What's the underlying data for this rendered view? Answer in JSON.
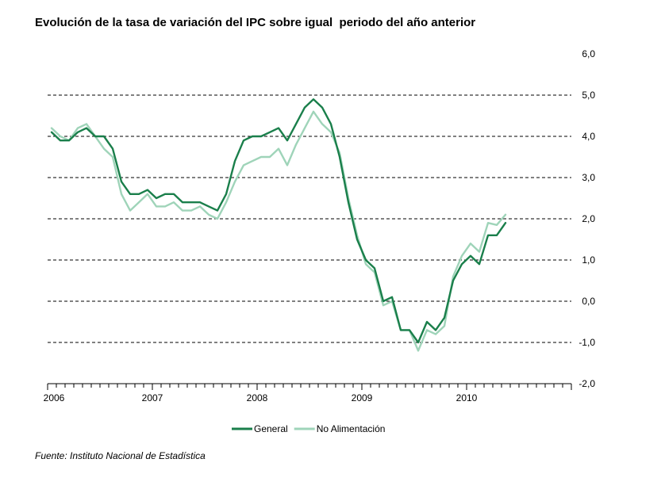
{
  "chart_data": {
    "type": "line",
    "title": "Evolución de la tasa de variación del IPC sobre igual  periodo del año anterior",
    "source": "Fuente: Instituto Nacional de Estadística",
    "ylim": [
      -2.0,
      6.0
    ],
    "yticks": [
      "6,0",
      "5,0",
      "4,0",
      "3,0",
      "2,0",
      "1,0",
      "0,0",
      "-1,0",
      "-2,0"
    ],
    "ytick_values": [
      6,
      5,
      4,
      3,
      2,
      1,
      0,
      -1,
      -2
    ],
    "year_labels": [
      "2006",
      "2007",
      "2008",
      "2009",
      "2010"
    ],
    "x_start": "2006-01",
    "grid": "dashed horizontal",
    "legend_position": "bottom-center",
    "series": [
      {
        "name": "General",
        "color": "#1a7f4b",
        "values": [
          4.1,
          3.9,
          3.9,
          4.1,
          4.2,
          4.0,
          4.0,
          3.7,
          2.9,
          2.6,
          2.6,
          2.7,
          2.5,
          2.6,
          2.6,
          2.4,
          2.4,
          2.4,
          2.3,
          2.2,
          2.6,
          3.4,
          3.9,
          4.0,
          4.0,
          4.1,
          4.2,
          3.9,
          4.3,
          4.7,
          4.9,
          4.7,
          4.3,
          3.5,
          2.4,
          1.5,
          1.0,
          0.8,
          0.0,
          0.1,
          -0.7,
          -0.7,
          -1.0,
          -0.5,
          -0.7,
          -0.4,
          0.5,
          0.9,
          1.1,
          0.9,
          1.6,
          1.6,
          1.9
        ]
      },
      {
        "name": "No Alimentación",
        "color": "#9fd4b9",
        "values": [
          4.2,
          4.0,
          3.9,
          4.2,
          4.3,
          4.0,
          3.7,
          3.5,
          2.6,
          2.2,
          2.4,
          2.6,
          2.3,
          2.3,
          2.4,
          2.2,
          2.2,
          2.3,
          2.1,
          2.0,
          2.4,
          2.9,
          3.3,
          3.4,
          3.5,
          3.5,
          3.7,
          3.3,
          3.8,
          4.2,
          4.6,
          4.3,
          4.1,
          3.6,
          2.5,
          1.6,
          0.9,
          0.7,
          -0.1,
          0.0,
          -0.7,
          -0.7,
          -1.2,
          -0.7,
          -0.8,
          -0.6,
          0.6,
          1.1,
          1.4,
          1.2,
          1.9,
          1.85,
          2.1
        ]
      }
    ]
  }
}
